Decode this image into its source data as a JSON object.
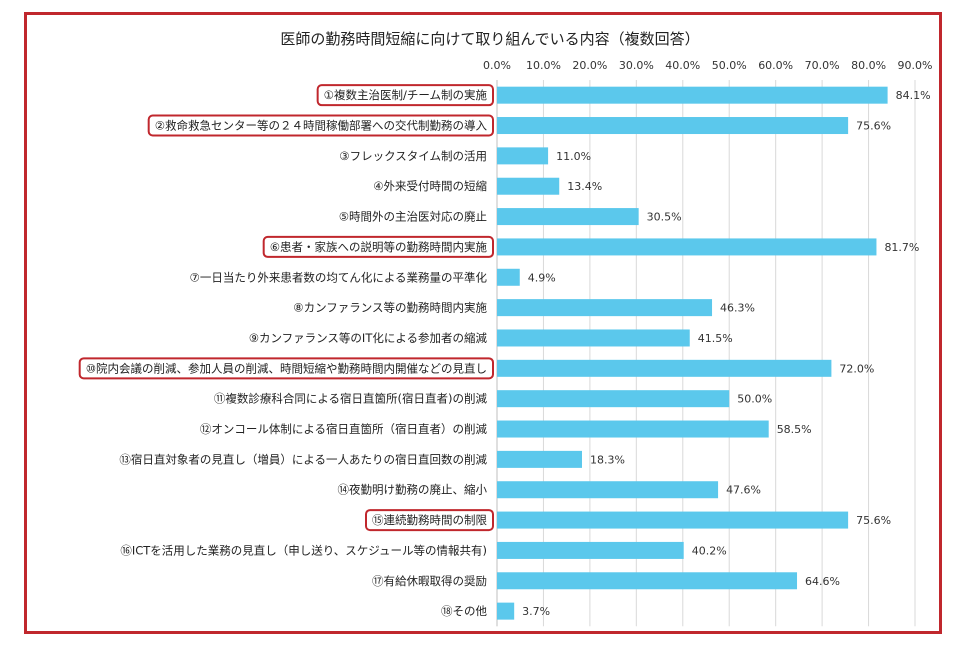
{
  "title": "医師の勤務時間短縮に向けて取り組んでいる内容（複数回答）",
  "colors": {
    "bar": "#5bc8ec",
    "highlight_border": "#c0272d",
    "frame": "#c0272d",
    "grid": "#d9d9d9"
  },
  "chart_data": {
    "type": "bar",
    "orientation": "horizontal",
    "title": "医師の勤務時間短縮に向けて取り組んでいる内容（複数回答）",
    "xlim": [
      0,
      90
    ],
    "x_ticks": [
      "0.0%",
      "10.0%",
      "20.0%",
      "30.0%",
      "40.0%",
      "50.0%",
      "60.0%",
      "70.0%",
      "80.0%",
      "90.0%"
    ],
    "x_tick_values": [
      0,
      10,
      20,
      30,
      40,
      50,
      60,
      70,
      80,
      90
    ],
    "axis_position": "top",
    "grid": true,
    "categories": [
      "①複数主治医制/チーム制の実施",
      "②救命救急センター等の２４時間稼働部署への交代制勤務の導入",
      "③フレックスタイム制の活用",
      "④外来受付時間の短縮",
      "⑤時間外の主治医対応の廃止",
      "⑥患者・家族への説明等の勤務時間内実施",
      "⑦一日当たり外来患者数の均てん化による業務量の平準化",
      "⑧カンファランス等の勤務時間内実施",
      "⑨カンファランス等のIT化による参加者の縮減",
      "⑩院内会議の削減、参加人員の削減、時間短縮や勤務時間内開催などの見直し",
      "⑪複数診療科合同による宿日直箇所(宿日直者)の削減",
      "⑫オンコール体制による宿日直箇所（宿日直者）の削減",
      "⑬宿日直対象者の見直し（増員）による一人あたりの宿日直回数の削減",
      "⑭夜勤明け勤務の廃止、縮小",
      "⑮連続勤務時間の制限",
      "⑯ICTを活用した業務の見直し（申し送り、スケジュール等の情報共有)",
      "⑰有給休暇取得の奨励",
      "⑱その他"
    ],
    "values": [
      84.1,
      75.6,
      11.0,
      13.4,
      30.5,
      81.7,
      4.9,
      46.3,
      41.5,
      72.0,
      50.0,
      58.5,
      18.3,
      47.6,
      75.6,
      40.2,
      64.6,
      3.7
    ],
    "data_labels": [
      "84.1%",
      "75.6%",
      "11.0%",
      "13.4%",
      "30.5%",
      "81.7%",
      "4.9%",
      "46.3%",
      "41.5%",
      "72.0%",
      "50.0%",
      "58.5%",
      "18.3%",
      "47.6%",
      "75.6%",
      "40.2%",
      "64.6%",
      "3.7%"
    ],
    "highlighted_categories": [
      0,
      1,
      5,
      9,
      14
    ]
  }
}
